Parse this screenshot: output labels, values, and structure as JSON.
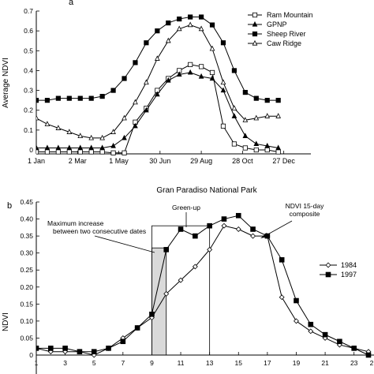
{
  "chart_data": [
    {
      "panel_label": "a",
      "type": "line",
      "title": "",
      "xlabel": "",
      "ylabel": "Average NDVI",
      "xlim": [
        0,
        365
      ],
      "ylim": [
        0,
        0.7
      ],
      "x_ticks": [
        {
          "value": 0,
          "label": "1 Jan"
        },
        {
          "value": 60,
          "label": "2 Mar"
        },
        {
          "value": 120,
          "label": "1 May"
        },
        {
          "value": 180,
          "label": "30 Jun"
        },
        {
          "value": 240,
          "label": "29 Aug"
        },
        {
          "value": 300,
          "label": "28 Oct"
        },
        {
          "value": 360,
          "label": "27 Dec"
        }
      ],
      "y_ticks": [
        0,
        0.1,
        0.2,
        0.3,
        0.4,
        0.5,
        0.6,
        0.7
      ],
      "grid": false,
      "legend_position": "top-right",
      "series": [
        {
          "name": "Ram Mountain",
          "marker": "open-square",
          "x": [
            0,
            16,
            32,
            48,
            64,
            80,
            96,
            112,
            128,
            144,
            160,
            176,
            192,
            208,
            224,
            240,
            256,
            272,
            288,
            304,
            320,
            336,
            352
          ],
          "y": [
            -0.01,
            -0.01,
            -0.01,
            -0.01,
            -0.01,
            -0.01,
            -0.01,
            -0.015,
            -0.015,
            0.14,
            0.21,
            0.3,
            0.36,
            0.4,
            0.43,
            0.42,
            0.39,
            0.12,
            0.03,
            0.01,
            0,
            0,
            -0.01
          ]
        },
        {
          "name": "GPNP",
          "marker": "filled-triangle",
          "x": [
            0,
            16,
            32,
            48,
            64,
            80,
            96,
            112,
            128,
            144,
            160,
            176,
            192,
            208,
            224,
            240,
            256,
            272,
            288,
            304,
            320,
            336,
            352
          ],
          "y": [
            0.01,
            0.01,
            0.01,
            0.01,
            0.01,
            0.01,
            0.01,
            0.02,
            0.06,
            0.12,
            0.2,
            0.28,
            0.35,
            0.38,
            0.39,
            0.37,
            0.36,
            0.3,
            0.17,
            0.07,
            0.03,
            0.02,
            0.01
          ]
        },
        {
          "name": "Sheep River",
          "marker": "filled-square",
          "x": [
            0,
            16,
            32,
            48,
            64,
            80,
            96,
            112,
            128,
            144,
            160,
            176,
            192,
            208,
            224,
            240,
            256,
            272,
            288,
            304,
            320,
            336,
            352
          ],
          "y": [
            0.25,
            0.25,
            0.26,
            0.26,
            0.26,
            0.26,
            0.27,
            0.3,
            0.36,
            0.44,
            0.54,
            0.6,
            0.64,
            0.66,
            0.67,
            0.67,
            0.63,
            0.54,
            0.4,
            0.29,
            0.26,
            0.25,
            0.25
          ]
        },
        {
          "name": "Caw Ridge",
          "marker": "open-triangle",
          "x": [
            0,
            16,
            32,
            48,
            64,
            80,
            96,
            112,
            128,
            144,
            160,
            176,
            192,
            208,
            224,
            240,
            256,
            272,
            288,
            304,
            320,
            336,
            352
          ],
          "y": [
            0.16,
            0.13,
            0.11,
            0.09,
            0.07,
            0.06,
            0.06,
            0.09,
            0.16,
            0.24,
            0.34,
            0.46,
            0.55,
            0.61,
            0.63,
            0.61,
            0.51,
            0.34,
            0.21,
            0.15,
            0.16,
            0.17,
            0.17
          ]
        }
      ]
    },
    {
      "panel_label": "b",
      "type": "line",
      "title": "Gran Paradiso National Park",
      "xlabel": "",
      "ylabel": "NDVI",
      "xlim": [
        1,
        24
      ],
      "ylim": [
        0,
        0.45
      ],
      "x_ticks": [
        1,
        3,
        5,
        7,
        9,
        11,
        13,
        15,
        17,
        19,
        21,
        23
      ],
      "y_ticks": [
        0,
        0.05,
        0.1,
        0.15,
        0.2,
        0.25,
        0.3,
        0.35,
        0.4,
        0.45
      ],
      "grid": false,
      "legend_position": "center-right",
      "x_ticks_truncated_label": "2",
      "annotations": [
        {
          "text": "Maximum increase between two consecutive dates"
        },
        {
          "text": "Green-up"
        },
        {
          "text": "NDVI 15-day composite"
        }
      ],
      "highlight_intervals": [
        {
          "x_from": 9,
          "x_to": 10,
          "y_to": 0.315,
          "fill": "#d9d9d9"
        },
        {
          "x_from": 9,
          "x_to": 13,
          "y_to": 0.38,
          "fill": "none"
        }
      ],
      "series": [
        {
          "name": "1984",
          "marker": "open-diamond",
          "x": [
            1,
            2,
            3,
            4,
            5,
            6,
            7,
            8,
            9,
            10,
            11,
            12,
            13,
            14,
            15,
            16,
            17,
            18,
            19,
            20,
            21,
            22,
            23,
            24
          ],
          "y": [
            0.02,
            0.01,
            0.01,
            0.01,
            0.0,
            0.02,
            0.05,
            0.08,
            0.11,
            0.18,
            0.22,
            0.26,
            0.31,
            0.38,
            0.37,
            0.35,
            0.35,
            0.17,
            0.1,
            0.07,
            0.05,
            0.03,
            0.02,
            0.01
          ]
        },
        {
          "name": "1997",
          "marker": "filled-square",
          "x": [
            1,
            2,
            3,
            4,
            5,
            6,
            7,
            8,
            9,
            10,
            11,
            12,
            13,
            14,
            15,
            16,
            17,
            18,
            19,
            20,
            21,
            22,
            23,
            24
          ],
          "y": [
            0.02,
            0.02,
            0.02,
            0.01,
            0.01,
            0.02,
            0.04,
            0.08,
            0.12,
            0.31,
            0.37,
            0.35,
            0.38,
            0.4,
            0.41,
            0.37,
            0.35,
            0.28,
            0.16,
            0.09,
            0.06,
            0.04,
            0.02,
            0.0
          ]
        }
      ]
    }
  ]
}
